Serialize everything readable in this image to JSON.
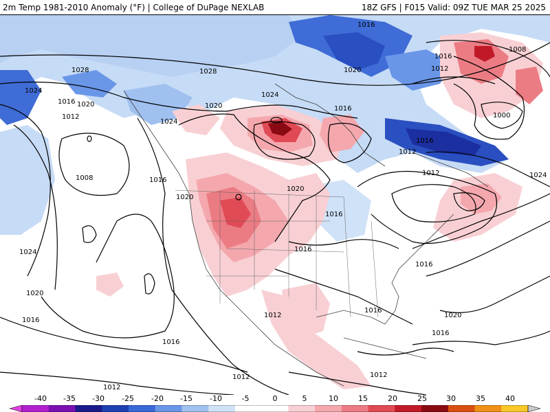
{
  "header": {
    "title": "2m Temp 1981-2010 Anomaly (°F) | College of DuPage NEXLAB",
    "run_info": "18Z GFS | F015 Valid: 09Z TUE MAR 25 2025"
  },
  "isobar_labels": [
    "1028",
    "1024",
    "1016",
    "1020",
    "1012",
    "1008",
    "1000",
    "1012",
    "1016",
    "1020",
    "1024",
    "1008",
    "1016",
    "1020",
    "1024",
    "1016",
    "1028",
    "1020",
    "1016",
    "1012",
    "1016",
    "1016",
    "1016",
    "1020",
    "1016",
    "1012",
    "1012",
    "1012",
    "1016",
    "1016",
    "1020",
    "1024",
    "1016",
    "1020",
    "1012",
    "1012"
  ],
  "colorbar": {
    "ticks": [
      "-40",
      "-35",
      "-30",
      "-25",
      "-20",
      "-15",
      "-10",
      "-5",
      "0",
      "5",
      "10",
      "15",
      "20",
      "25",
      "30",
      "35",
      "40"
    ],
    "colors": [
      "#e040e0",
      "#b020d0",
      "#7a10b0",
      "#1a1a8a",
      "#1f40b0",
      "#3a68d8",
      "#6a96e8",
      "#a0c0f0",
      "#d0e2f8",
      "#ffffff",
      "#ffffff",
      "#f8d0d4",
      "#f4a8ae",
      "#ec7c84",
      "#e04a55",
      "#c01a28",
      "#8a0a14",
      "#d85010",
      "#f09018",
      "#f8c828",
      "#c8c8c8"
    ]
  }
}
